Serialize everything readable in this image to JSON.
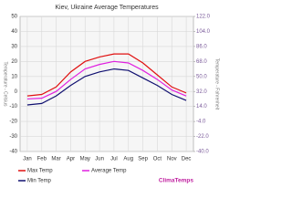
{
  "chart_data": {
    "type": "line",
    "title": "Kiev, Ukraine Average Temperatures",
    "ylabel": "Temperature - Celsius",
    "y2label": "Temperature - Fahrenheit",
    "categories": [
      "Jan",
      "Feb",
      "Mar",
      "Apr",
      "May",
      "Jun",
      "Jul",
      "Aug",
      "Sep",
      "Oct",
      "Nov",
      "Dec"
    ],
    "series": [
      {
        "name": "Max Temp",
        "color": "#e01010",
        "values": [
          -3,
          -2,
          3,
          13,
          20,
          23,
          25,
          25,
          19,
          11,
          3,
          -1
        ]
      },
      {
        "name": "Average Temp",
        "color": "#e020e0",
        "values": [
          -5,
          -4.5,
          0,
          8,
          15,
          18,
          20,
          19,
          14,
          8,
          1,
          -3
        ]
      },
      {
        "name": "Min Temp",
        "color": "#101070",
        "values": [
          -9,
          -8,
          -3,
          4,
          10,
          13,
          15,
          14,
          9,
          4,
          -2,
          -6
        ]
      }
    ],
    "ylim": [
      -40,
      50
    ],
    "yticks": [
      50,
      40,
      30,
      20,
      10,
      0,
      -10,
      -20,
      -30,
      -40
    ],
    "y2lim": [
      -40,
      122
    ],
    "y2ticks": [
      {
        "value": 122,
        "label": "122.0"
      },
      {
        "value": 104,
        "label": "104.0"
      },
      {
        "value": 86,
        "label": "86.0"
      },
      {
        "value": 68,
        "label": "68.0"
      },
      {
        "value": 50,
        "label": "50.0"
      },
      {
        "value": 32,
        "label": "32.0"
      },
      {
        "value": 14,
        "label": "14.0"
      },
      {
        "value": -4,
        "label": "-4.0"
      },
      {
        "value": -22,
        "label": "-22.0"
      },
      {
        "value": -40,
        "label": "-40.0"
      }
    ],
    "grid": true,
    "brand": "ClimaTemps"
  }
}
